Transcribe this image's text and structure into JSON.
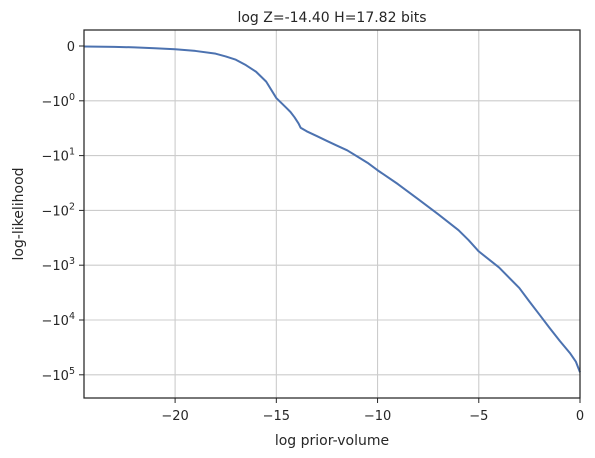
{
  "chart_data": {
    "type": "line",
    "title": "log Z=-14.40 H=17.82 bits",
    "xlabel": "log prior-volume",
    "ylabel": "log-likelihood",
    "xlim": [
      -24.5,
      0
    ],
    "yscale": "symlog",
    "linthresh": 1,
    "grid": true,
    "color": "#4c72b0",
    "xticks": [
      {
        "value": -20,
        "label": "−20"
      },
      {
        "value": -15,
        "label": "−15"
      },
      {
        "value": -10,
        "label": "−10"
      },
      {
        "value": -5,
        "label": "−5"
      },
      {
        "value": 0,
        "label": "0"
      }
    ],
    "yticks": [
      {
        "value": 0,
        "label": "0",
        "sup": ""
      },
      {
        "value": -1,
        "label": "−10",
        "sup": "0"
      },
      {
        "value": -10,
        "label": "−10",
        "sup": "1"
      },
      {
        "value": -100,
        "label": "−10",
        "sup": "2"
      },
      {
        "value": -1000,
        "label": "−10",
        "sup": "3"
      },
      {
        "value": -10000,
        "label": "−10",
        "sup": "4"
      },
      {
        "value": -100000,
        "label": "−10",
        "sup": "5"
      }
    ],
    "series": [
      {
        "x": [
          -24.5,
          -23,
          -22,
          -21,
          -20,
          -19,
          -18,
          -17.5,
          -17,
          -16.5,
          -16,
          -15.5,
          -15,
          -14.5,
          -14.3,
          -14.1,
          -13.9,
          -13.8,
          -13.5,
          -13,
          -12.5,
          -12,
          -11.5,
          -11,
          -10.5,
          -10,
          -9,
          -8,
          -7,
          -6,
          -5.5,
          -5,
          -4,
          -3,
          -2.5,
          -2,
          -1.5,
          -1,
          -0.5,
          -0.2,
          0
        ],
        "y": [
          -0.01,
          -0.015,
          -0.025,
          -0.04,
          -0.06,
          -0.09,
          -0.14,
          -0.19,
          -0.25,
          -0.35,
          -0.47,
          -0.65,
          -0.95,
          -1.35,
          -1.6,
          -2.0,
          -2.6,
          -3.1,
          -3.6,
          -4.4,
          -5.4,
          -6.6,
          -8.0,
          -10.4,
          -13.5,
          -18.5,
          -33,
          -62,
          -118,
          -230,
          -350,
          -560,
          -1100,
          -2600,
          -4600,
          -8000,
          -14000,
          -24000,
          -40000,
          -58000,
          -90000
        ]
      }
    ]
  }
}
